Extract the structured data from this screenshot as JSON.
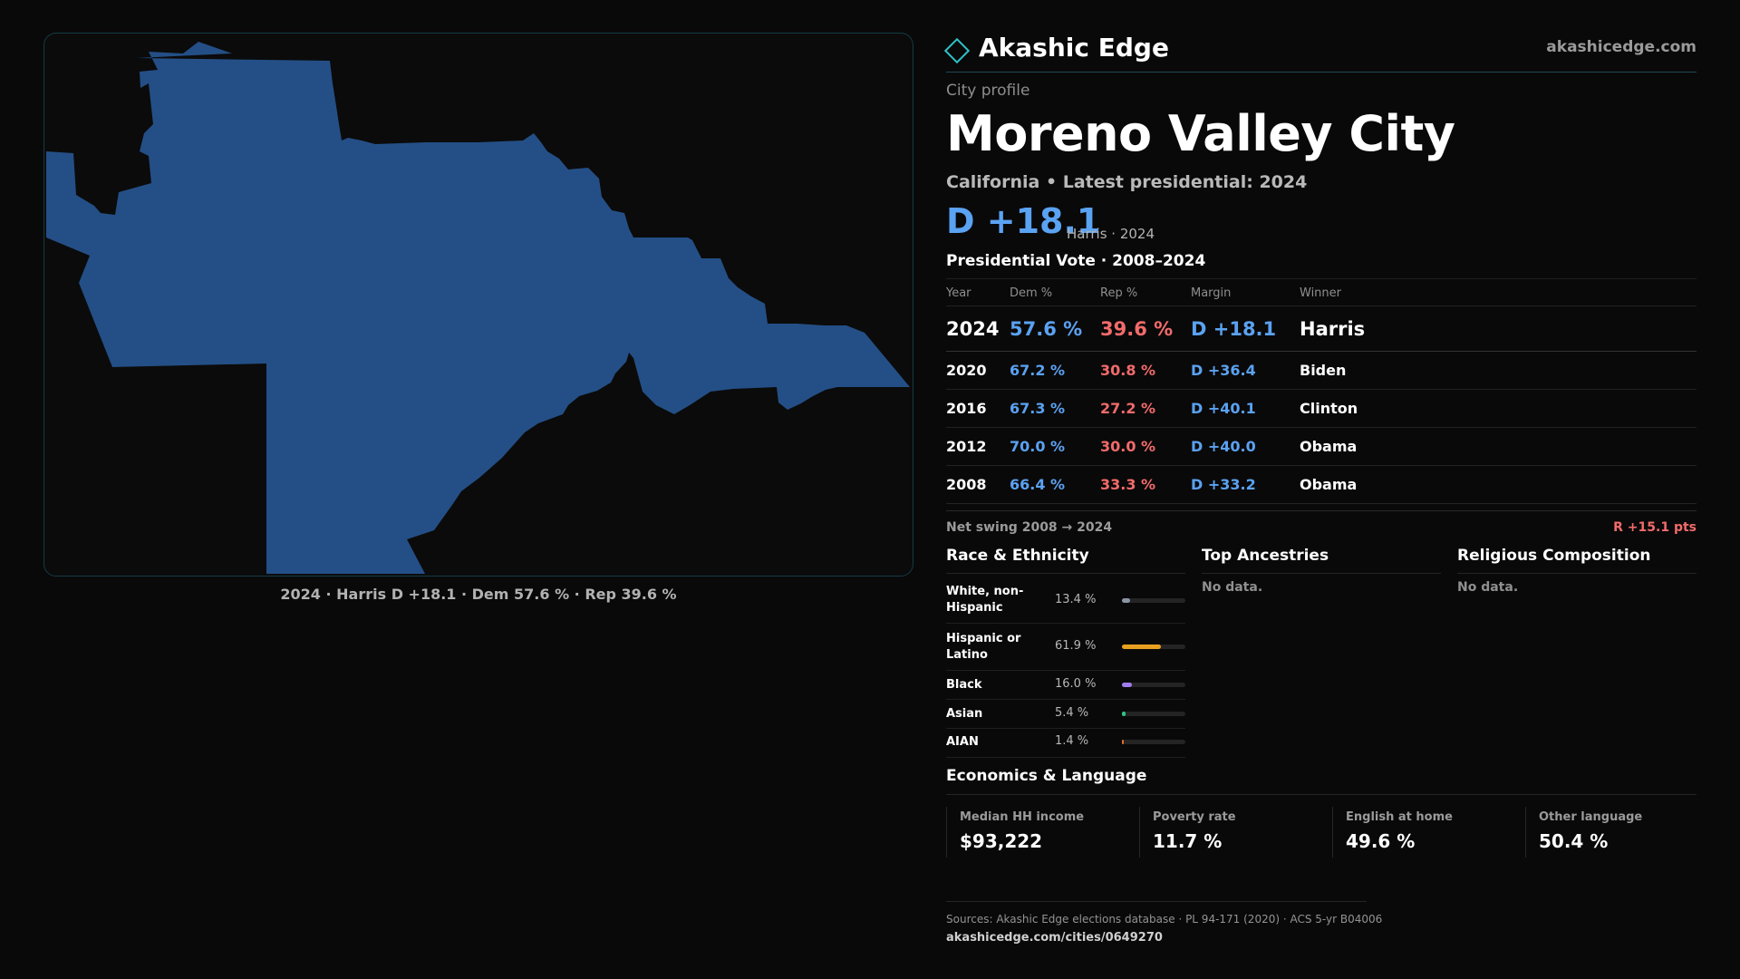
{
  "map": {
    "caption": "2024 · Harris D +18.1 · Dem 57.6 % · Rep 39.6 %",
    "fill_color": "#244f86"
  },
  "brand": {
    "name": "Akashic Edge",
    "url": "akashicedge.com",
    "icon": "diamond-logo-icon",
    "accent": "#2ec4c8"
  },
  "profile": {
    "kicker": "City profile",
    "title": "Moreno Valley City",
    "subtitle": "California • Latest presidential: 2024",
    "margin": "D +18.1",
    "margin_note": "Harris · 2024"
  },
  "vote_table": {
    "title": "Presidential Vote · 2008–2024",
    "headers": {
      "year": "Year",
      "dem": "Dem %",
      "rep": "Rep %",
      "margin": "Margin",
      "winner": "Winner"
    },
    "rows": [
      {
        "year": "2024",
        "dem": "57.6 %",
        "rep": "39.6 %",
        "margin": "D +18.1",
        "winner": "Harris"
      },
      {
        "year": "2020",
        "dem": "67.2 %",
        "rep": "30.8 %",
        "margin": "D +36.4",
        "winner": "Biden"
      },
      {
        "year": "2016",
        "dem": "67.3 %",
        "rep": "27.2 %",
        "margin": "D +40.1",
        "winner": "Clinton"
      },
      {
        "year": "2012",
        "dem": "70.0 %",
        "rep": "30.0 %",
        "margin": "D +40.0",
        "winner": "Obama"
      },
      {
        "year": "2008",
        "dem": "66.4 %",
        "rep": "33.3 %",
        "margin": "D +33.2",
        "winner": "Obama"
      }
    ],
    "colors": {
      "dem": "#5aa2f2",
      "rep": "#f26b6b"
    }
  },
  "swing": {
    "label": "Net swing 2008 → 2024",
    "value": "R +15.1 pts"
  },
  "race": {
    "title": "Race & Ethnicity",
    "rows": [
      {
        "label": "White, non-Hispanic",
        "pct": "13.4 %",
        "value": 13.4,
        "color": "#8a94a6"
      },
      {
        "label": "Hispanic or Latino",
        "pct": "61.9 %",
        "value": 61.9,
        "color": "#e8a020"
      },
      {
        "label": "Black",
        "pct": "16.0 %",
        "value": 16.0,
        "color": "#a07cf0"
      },
      {
        "label": "Asian",
        "pct": "5.4 %",
        "value": 5.4,
        "color": "#2ec48a"
      },
      {
        "label": "AIAN",
        "pct": "1.4 %",
        "value": 1.4,
        "color": "#e8702a"
      }
    ]
  },
  "ancestries": {
    "title": "Top Ancestries",
    "empty": "No data."
  },
  "religion": {
    "title": "Religious Composition",
    "empty": "No data."
  },
  "economics": {
    "title": "Economics & Language",
    "cells": [
      {
        "label": "Median HH income",
        "value": "$93,222"
      },
      {
        "label": "Poverty rate",
        "value": "11.7 %"
      },
      {
        "label": "English at home",
        "value": "49.6 %"
      },
      {
        "label": "Other language",
        "value": "50.4 %"
      }
    ]
  },
  "sources": {
    "text": "Sources: Akashic Edge elections database · PL 94-171 (2020) · ACS 5-yr B04006",
    "url": "akashicedge.com/cities/0649270"
  }
}
